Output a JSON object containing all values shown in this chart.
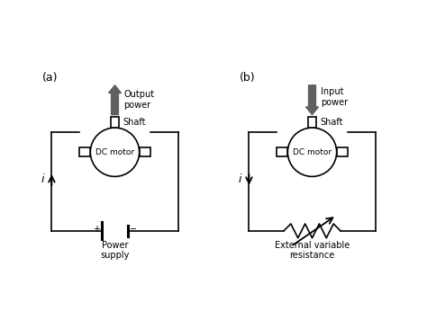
{
  "fig_width": 4.74,
  "fig_height": 3.56,
  "dpi": 100,
  "bg_color": "#ffffff",
  "diagram_color": "#000000",
  "arrow_color": "#606060",
  "label_a": "(a)",
  "label_b": "(b)",
  "output_power_text": "Output\npower",
  "input_power_text": "Input\npower",
  "shaft_text": "Shaft",
  "dc_motor_text": "DC motor",
  "power_supply_text": "Power\nsupply",
  "ext_res_text": "External variable\nresistance",
  "current_label": "i"
}
